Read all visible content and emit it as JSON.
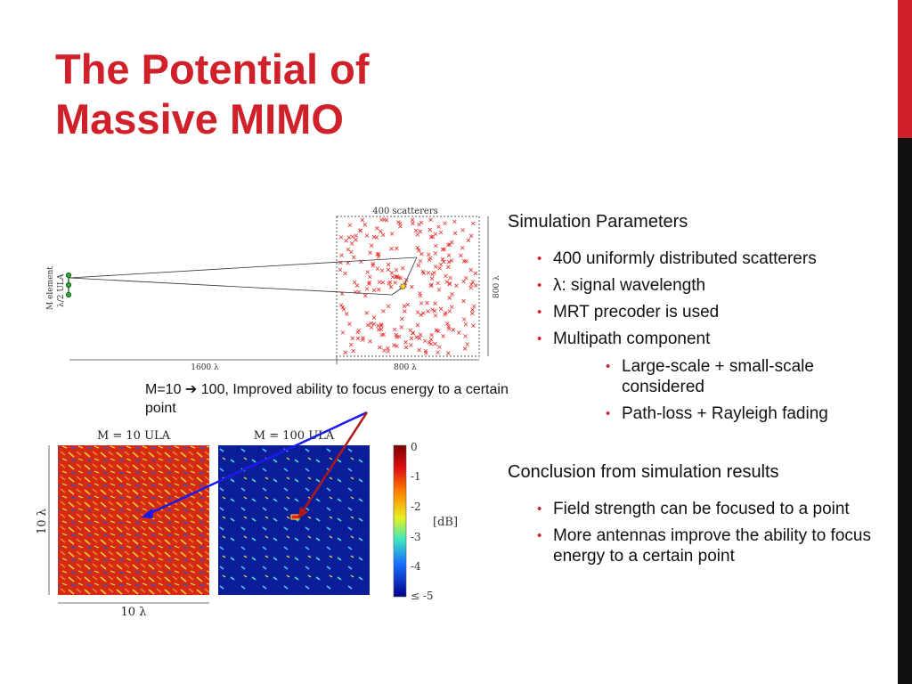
{
  "title": {
    "line1": "The Potential of",
    "line2": "Massive MIMO"
  },
  "colors": {
    "accent": "#d0202a",
    "sidebar_top": "#d0202a",
    "sidebar_bottom": "#111111",
    "scatter_mark": "#e23030",
    "arrow_blue": "#1a1aee",
    "arrow_red": "#b01818"
  },
  "figure_top": {
    "scatterers_label": "400 scatterers",
    "ula_label_line1": "M element",
    "ula_label_line2": "λ/2 ULA",
    "height_label": "800 λ",
    "distance_label": "1600 λ",
    "width_label": "800 λ"
  },
  "caption": {
    "prefix": "M=10 ",
    "arrow": "➔",
    "suffix": " 100, Improved ability to focus energy to a certain point"
  },
  "heatmaps": {
    "left_title": "M = 10 ULA",
    "right_title": "M = 100 ULA",
    "y_label": "10 λ",
    "x_label": "10 λ",
    "colorbar_unit": "[dB]",
    "colorbar_ticks": [
      "0",
      "-1",
      "-2",
      "-3",
      "-4",
      "≤ -5"
    ]
  },
  "simulation": {
    "heading": "Simulation Parameters",
    "bullets": [
      "400 uniformly distributed scatterers",
      "λ: signal wavelength",
      "MRT precoder is used",
      "Multipath component"
    ],
    "sub_bullets": [
      "Large-scale  + small-scale considered",
      "Path-loss + Rayleigh fading"
    ]
  },
  "conclusion": {
    "heading": "Conclusion from simulation results",
    "bullets": [
      "Field strength can be focused to a point",
      "More antennas improve the ability to focus energy to a certain point"
    ]
  }
}
